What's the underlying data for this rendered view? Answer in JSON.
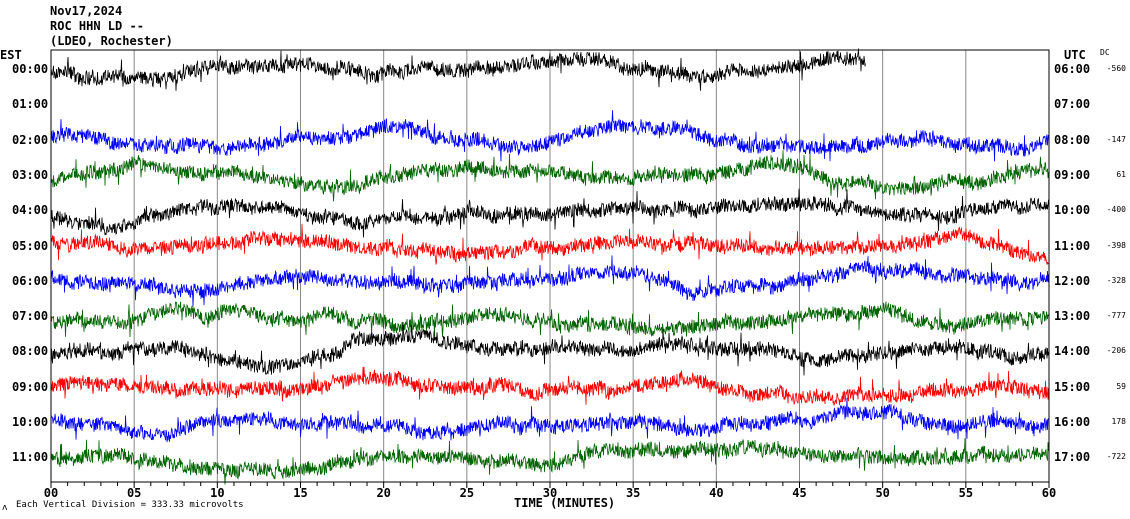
{
  "header": {
    "date": "Nov17,2024",
    "station": "ROC HHN LD --",
    "network": "(LDEO, Rochester)"
  },
  "left_axis_title": "EST",
  "right_axis_title": "UTC",
  "dc_title": "DC",
  "footer": {
    "scale_text": "Each Vertical Division =  333.33 microvolts",
    "xlabel": "TIME (MINUTES)",
    "mark": "ʌ"
  },
  "chart_data": {
    "type": "line",
    "title": "ROC HHN LD -- helicorder Nov17,2024",
    "xlabel": "TIME (MINUTES)",
    "xlim": [
      0,
      60
    ],
    "xticks": [
      "00",
      "05",
      "10",
      "15",
      "20",
      "25",
      "30",
      "35",
      "40",
      "45",
      "50",
      "55",
      "60"
    ],
    "rows": [
      {
        "est": "00:00",
        "utc": "06:00",
        "dc": "-560",
        "color": "#000000",
        "end_minute": 49
      },
      {
        "est": "01:00",
        "utc": "07:00",
        "dc": "",
        "color": "#ff0000",
        "end_minute": 0
      },
      {
        "est": "02:00",
        "utc": "08:00",
        "dc": "-147",
        "color": "#0000ff",
        "end_minute": 60
      },
      {
        "est": "03:00",
        "utc": "09:00",
        "dc": "61",
        "color": "#006400",
        "end_minute": 60
      },
      {
        "est": "04:00",
        "utc": "10:00",
        "dc": "-400",
        "color": "#000000",
        "end_minute": 60
      },
      {
        "est": "05:00",
        "utc": "11:00",
        "dc": "-398",
        "color": "#ff0000",
        "end_minute": 60
      },
      {
        "est": "06:00",
        "utc": "12:00",
        "dc": "-328",
        "color": "#0000ff",
        "end_minute": 60
      },
      {
        "est": "07:00",
        "utc": "13:00",
        "dc": "-777",
        "color": "#006400",
        "end_minute": 60
      },
      {
        "est": "08:00",
        "utc": "14:00",
        "dc": "-206",
        "color": "#000000",
        "end_minute": 60
      },
      {
        "est": "09:00",
        "utc": "15:00",
        "dc": "59",
        "color": "#ff0000",
        "end_minute": 60
      },
      {
        "est": "10:00",
        "utc": "16:00",
        "dc": "178",
        "color": "#0000ff",
        "end_minute": 60
      },
      {
        "est": "11:00",
        "utc": "17:00",
        "dc": "-722",
        "color": "#006400",
        "end_minute": 60
      }
    ]
  }
}
